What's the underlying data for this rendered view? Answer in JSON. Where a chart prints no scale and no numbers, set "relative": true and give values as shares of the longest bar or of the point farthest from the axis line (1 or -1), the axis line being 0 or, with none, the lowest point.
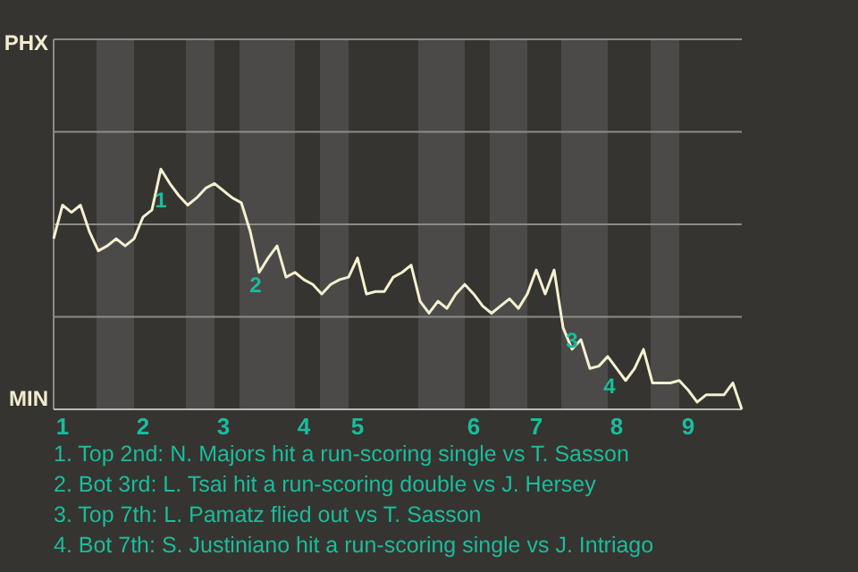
{
  "chart_data": {
    "type": "line",
    "relative": true,
    "categories": [
      null,
      "1",
      null,
      null,
      null,
      null,
      null,
      null,
      null,
      null,
      "2",
      null,
      null,
      null,
      null,
      null,
      null,
      null,
      null,
      "3",
      null,
      null,
      null,
      null,
      null,
      null,
      null,
      null,
      "4",
      null,
      null,
      null,
      null,
      null,
      "5",
      null,
      null,
      null,
      null,
      null,
      null,
      null,
      null,
      null,
      null,
      null,
      null,
      "6",
      null,
      null,
      null,
      null,
      null,
      null,
      "7",
      null,
      null,
      null,
      null,
      null,
      null,
      null,
      null,
      "8",
      null,
      null,
      null,
      null,
      null,
      null,
      null,
      "9",
      null,
      null,
      null,
      null,
      null,
      null
    ],
    "series": [
      {
        "color": "#f5f0d0",
        "values": [
          0.71,
          0.85,
          0.82,
          0.85,
          0.74,
          0.66,
          0.68,
          0.71,
          0.68,
          0.71,
          0.8,
          0.83,
          1,
          0.94,
          0.89,
          0.85,
          0.88,
          0.92,
          0.94,
          0.91,
          0.88,
          0.86,
          0.74,
          0.57,
          0.63,
          0.68,
          0.55,
          0.57,
          0.54,
          0.52,
          0.48,
          0.52,
          0.54,
          0.55,
          0.63,
          0.48,
          0.49,
          0.49,
          0.55,
          0.57,
          0.6,
          0.45,
          0.4,
          0.45,
          0.42,
          0.48,
          0.52,
          0.48,
          0.43,
          0.4,
          0.43,
          0.46,
          0.42,
          0.48,
          0.58,
          0.48,
          0.58,
          0.34,
          0.25,
          0.29,
          0.17,
          0.18,
          0.22,
          0.17,
          0.12,
          0.17,
          0.25,
          0.11,
          0.11,
          0.11,
          0.12,
          0.08,
          0.03,
          0.06,
          0.06,
          0.06,
          0.11,
          0
        ]
      }
    ],
    "marker": "none",
    "line_style": "solid",
    "ref_lines": [
      {
        "axis": "y",
        "value": 0.385,
        "color": "#8d8b88"
      },
      {
        "axis": "y",
        "value": 0.77,
        "color": "#8d8b88"
      },
      {
        "axis": "y",
        "value": 1.155,
        "color": "#8d8b88"
      }
    ],
    "annotations": [
      "PHX",
      "MIN",
      "1",
      "2",
      "3",
      "4",
      "1. Top 2nd: N. Majors hit a run-scoring single vs T. Sasson",
      "2. Bot 3rd: L. Tsai hit a run-scoring double vs J. Hersey",
      "3. Top 7th: L. Pamatz flied out vs T. Sasson",
      "4. Bot 7th: S. Justiniano hit a run-scoring single vs J. Intriago"
    ]
  }
}
